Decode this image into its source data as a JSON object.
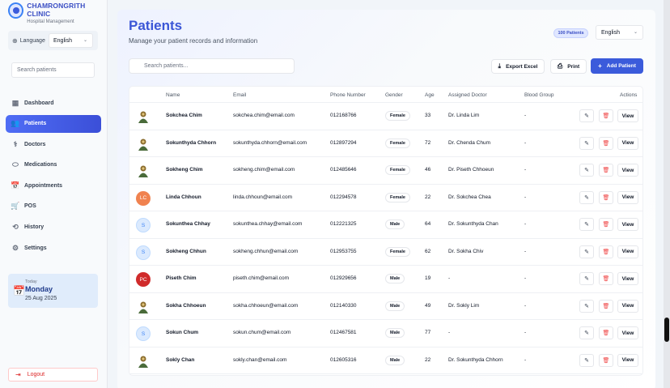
{
  "brand": {
    "name": "CHAMRONGRITH CLINIC",
    "subtitle": "Hospital Management"
  },
  "sidebar": {
    "language_label": "Language",
    "language_value": "English",
    "search_placeholder": "Search patients",
    "items": [
      {
        "label": "Dashboard",
        "icon": "dashboard-icon",
        "glyph": "▦"
      },
      {
        "label": "Patients",
        "icon": "users-icon",
        "glyph": "👥",
        "active": true
      },
      {
        "label": "Doctors",
        "icon": "doctor-icon",
        "glyph": "⚕"
      },
      {
        "label": "Medications",
        "icon": "pill-icon",
        "glyph": "⬭"
      },
      {
        "label": "Appointments",
        "icon": "calendar-icon",
        "glyph": "📅"
      },
      {
        "label": "POS",
        "icon": "cart-icon",
        "glyph": "🛒"
      },
      {
        "label": "History",
        "icon": "history-icon",
        "glyph": "⟲"
      },
      {
        "label": "Settings",
        "icon": "gear-icon",
        "glyph": "⚙"
      }
    ],
    "today": {
      "label": "Today",
      "day": "Monday",
      "date": "25 Aug 2025"
    },
    "logout": "Logout"
  },
  "header": {
    "title": "Patients",
    "subtitle": "Manage your patient records and information",
    "count_badge": "100 Patients",
    "language_value": "English"
  },
  "toolbar": {
    "search_placeholder": "Search patients...",
    "export_label": "Export Excel",
    "print_label": "Print",
    "add_label": "Add Patient"
  },
  "table": {
    "columns": [
      "Name",
      "Email",
      "Phone Number",
      "Gender",
      "Age",
      "Assigned Doctor",
      "Blood Group",
      "Actions"
    ],
    "rows": [
      {
        "avatar": "image",
        "initials": "",
        "name": "Sokchea Chim",
        "email": "sokchea.chim@email.com",
        "phone": "012168766",
        "gender": "Female",
        "age": "33",
        "doctor": "Dr. Linda Lim",
        "blood": "-"
      },
      {
        "avatar": "image",
        "initials": "",
        "name": "Sokunthyda Chhorn",
        "email": "sokunthyda.chhorn@email.com",
        "phone": "012897294",
        "gender": "Female",
        "age": "72",
        "doctor": "Dr. Chenda Chum",
        "blood": "-"
      },
      {
        "avatar": "image",
        "initials": "",
        "name": "Sokheng Chim",
        "email": "sokheng.chim@email.com",
        "phone": "012485646",
        "gender": "Female",
        "age": "46",
        "doctor": "Dr. Piseth Chhoeun",
        "blood": "-"
      },
      {
        "avatar": "initials",
        "initials": "LC",
        "name": "Linda Chhoun",
        "email": "linda.chhoun@email.com",
        "phone": "012294578",
        "gender": "Female",
        "age": "22",
        "doctor": "Dr. Sokchea Chea",
        "blood": "-"
      },
      {
        "avatar": "initials",
        "initials": "S",
        "name": "Sokunthea Chhay",
        "email": "sokunthea.chhay@email.com",
        "phone": "012221325",
        "gender": "Male",
        "age": "64",
        "doctor": "Dr. Sokunthyda Chan",
        "blood": "-"
      },
      {
        "avatar": "initials",
        "initials": "S",
        "name": "Sokheng Chhun",
        "email": "sokheng.chhun@email.com",
        "phone": "012953755",
        "gender": "Female",
        "age": "62",
        "doctor": "Dr. Sokha Chiv",
        "blood": "-"
      },
      {
        "avatar": "initials",
        "initials": "PC",
        "name": "Piseth Chim",
        "email": "piseth.chim@email.com",
        "phone": "012929656",
        "gender": "Male",
        "age": "19",
        "doctor": "-",
        "blood": "-"
      },
      {
        "avatar": "image",
        "initials": "",
        "name": "Sokha Chhoeun",
        "email": "sokha.chhoeun@email.com",
        "phone": "012140330",
        "gender": "Male",
        "age": "49",
        "doctor": "Dr. Sokly Lim",
        "blood": "-"
      },
      {
        "avatar": "initials",
        "initials": "S",
        "name": "Sokun Chum",
        "email": "sokun.chum@email.com",
        "phone": "012467581",
        "gender": "Male",
        "age": "77",
        "doctor": "-",
        "blood": "-"
      },
      {
        "avatar": "image",
        "initials": "",
        "name": "Sokly Chan",
        "email": "sokly.chan@email.com",
        "phone": "012605316",
        "gender": "Male",
        "age": "22",
        "doctor": "Dr. Sokunthyda Chhorn",
        "blood": "-"
      }
    ],
    "view_label": "View"
  }
}
